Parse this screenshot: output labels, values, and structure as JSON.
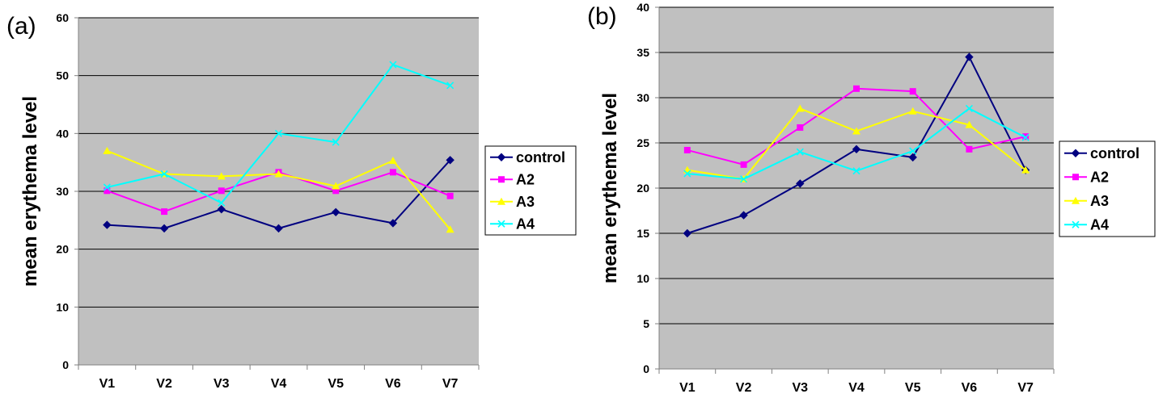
{
  "chart_data": [
    {
      "type": "line",
      "panel_label": "(a)",
      "title": "",
      "xlabel": "",
      "ylabel": "mean erythema level",
      "ylim": [
        0,
        60
      ],
      "yticks": [
        0,
        10,
        20,
        30,
        40,
        50,
        60
      ],
      "categories": [
        "V1",
        "V2",
        "V3",
        "V4",
        "V5",
        "V6",
        "V7"
      ],
      "grid": true,
      "legend_position": "right",
      "series": [
        {
          "name": "control",
          "color": "#000080",
          "marker": "diamond",
          "values": [
            24.2,
            23.6,
            26.9,
            23.6,
            26.4,
            24.5,
            35.4
          ]
        },
        {
          "name": "A2",
          "color": "#FF00FF",
          "marker": "square",
          "values": [
            30.1,
            26.5,
            30.1,
            33.3,
            30.1,
            33.3,
            29.2
          ]
        },
        {
          "name": "A3",
          "color": "#FFFF00",
          "marker": "triangle",
          "values": [
            37.0,
            33.0,
            32.6,
            33.0,
            30.9,
            35.3,
            23.4
          ]
        },
        {
          "name": "A4",
          "color": "#00FFFF",
          "marker": "x",
          "values": [
            30.7,
            33.0,
            28.0,
            40.0,
            38.5,
            51.9,
            48.3
          ]
        }
      ]
    },
    {
      "type": "line",
      "panel_label": "(b)",
      "title": "",
      "xlabel": "",
      "ylabel": "mean erythema level",
      "ylim": [
        0,
        40
      ],
      "yticks": [
        0,
        5,
        10,
        15,
        20,
        25,
        30,
        35,
        40
      ],
      "categories": [
        "V1",
        "V2",
        "V3",
        "V4",
        "V5",
        "V6",
        "V7"
      ],
      "grid": true,
      "legend_position": "right",
      "series": [
        {
          "name": "control",
          "color": "#000080",
          "marker": "diamond",
          "values": [
            15.0,
            17.0,
            20.5,
            24.3,
            23.4,
            34.5,
            22.0
          ]
        },
        {
          "name": "A2",
          "color": "#FF00FF",
          "marker": "square",
          "values": [
            24.2,
            22.6,
            26.7,
            31.0,
            30.7,
            24.3,
            25.7
          ]
        },
        {
          "name": "A3",
          "color": "#FFFF00",
          "marker": "triangle",
          "values": [
            22.0,
            21.0,
            28.8,
            26.3,
            28.5,
            27.0,
            22.0
          ]
        },
        {
          "name": "A4",
          "color": "#00FFFF",
          "marker": "x",
          "values": [
            21.6,
            21.0,
            24.0,
            21.9,
            24.1,
            28.8,
            25.6
          ]
        }
      ]
    }
  ]
}
